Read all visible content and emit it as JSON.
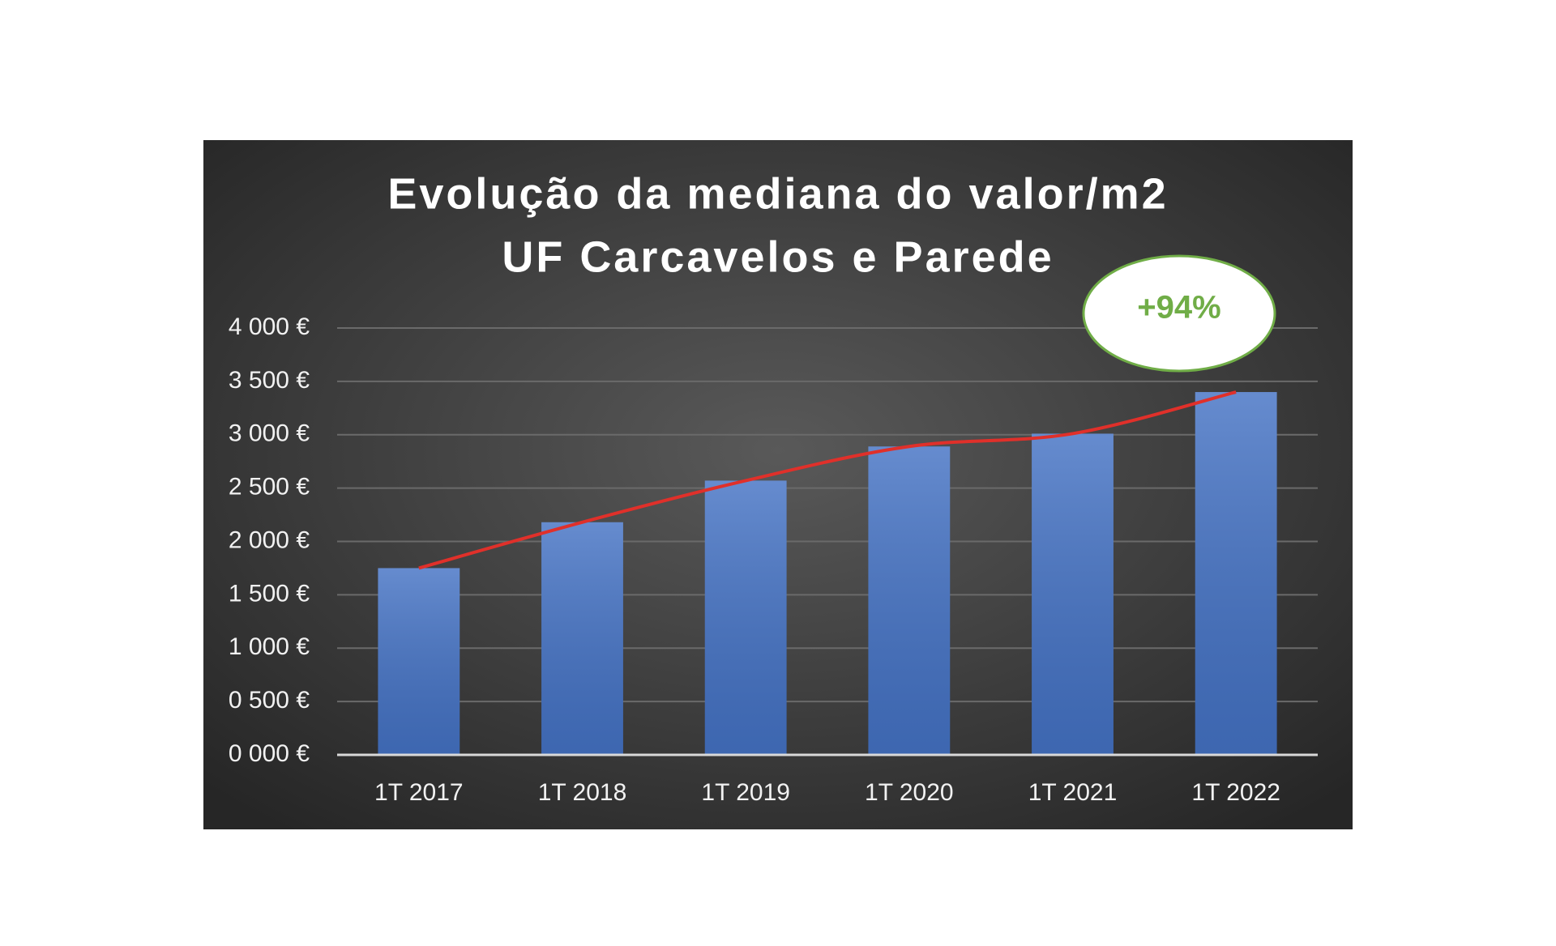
{
  "chart_data": {
    "type": "bar",
    "title": [
      "Evolução da mediana do valor/m2",
      "UF Carcavelos e Parede"
    ],
    "categories": [
      "1T 2017",
      "1T 2018",
      "1T 2019",
      "1T 2020",
      "1T 2021",
      "1T 2022"
    ],
    "values": [
      1750,
      2180,
      2570,
      2890,
      3010,
      3400
    ],
    "color": "#4472c4",
    "trendline": true,
    "trendline_color": "#e0302a",
    "annotation": "+94%",
    "annotation_color": "#70ad47",
    "ylim": [
      0,
      4000
    ],
    "yticks": [
      {
        "value": 0,
        "label": "0 000 €"
      },
      {
        "value": 500,
        "label": "0 500 €"
      },
      {
        "value": 1000,
        "label": "1 000 €"
      },
      {
        "value": 1500,
        "label": "1 500 €"
      },
      {
        "value": 2000,
        "label": "2 000 €"
      },
      {
        "value": 2500,
        "label": "2 500 €"
      },
      {
        "value": 3000,
        "label": "3 000 €"
      },
      {
        "value": 3500,
        "label": "3 500 €"
      },
      {
        "value": 4000,
        "label": "4 000 €"
      }
    ],
    "grid": true
  }
}
